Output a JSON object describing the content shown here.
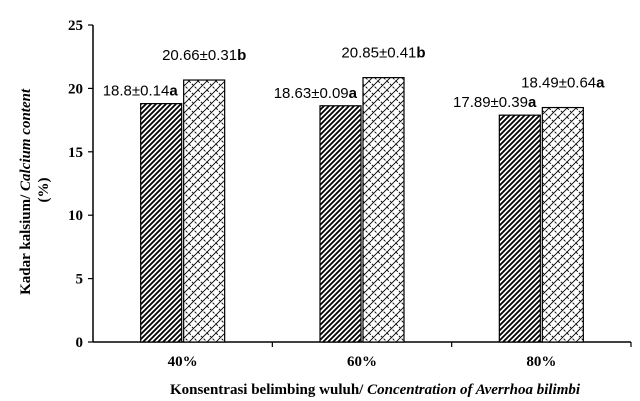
{
  "chart_data": {
    "type": "bar",
    "categories": [
      "40%",
      "60%",
      "80%"
    ],
    "series": [
      {
        "pattern": "diagonal-dense",
        "values": [
          18.8,
          18.63,
          17.89
        ],
        "labels": [
          "18.8±0.14",
          "18.63±0.09",
          "17.89±0.39"
        ],
        "letters": [
          "a",
          "a",
          "a"
        ]
      },
      {
        "pattern": "diamond-lattice",
        "values": [
          20.66,
          20.85,
          18.49
        ],
        "labels": [
          "20.66±0.31",
          "20.85±0.41",
          "18.49±0.64"
        ],
        "letters": [
          "b",
          "b",
          "a"
        ]
      }
    ],
    "ylim": [
      0,
      25
    ],
    "yticks": [
      0,
      5,
      10,
      15,
      20,
      25
    ],
    "ylabel": {
      "line1_plain": "Kadar kalsium/ ",
      "line1_italic": "Calcium content",
      "line2": "(%)"
    },
    "xlabel": {
      "plain": "Konsentrasi belimbing wuluh/ ",
      "italic": "Concentration of  Averrhoa bilimbi"
    },
    "grid": false,
    "legend": "none",
    "colors": {
      "bar_fill": "#ffffff",
      "pattern": "#000000",
      "axis": "#000000"
    }
  }
}
